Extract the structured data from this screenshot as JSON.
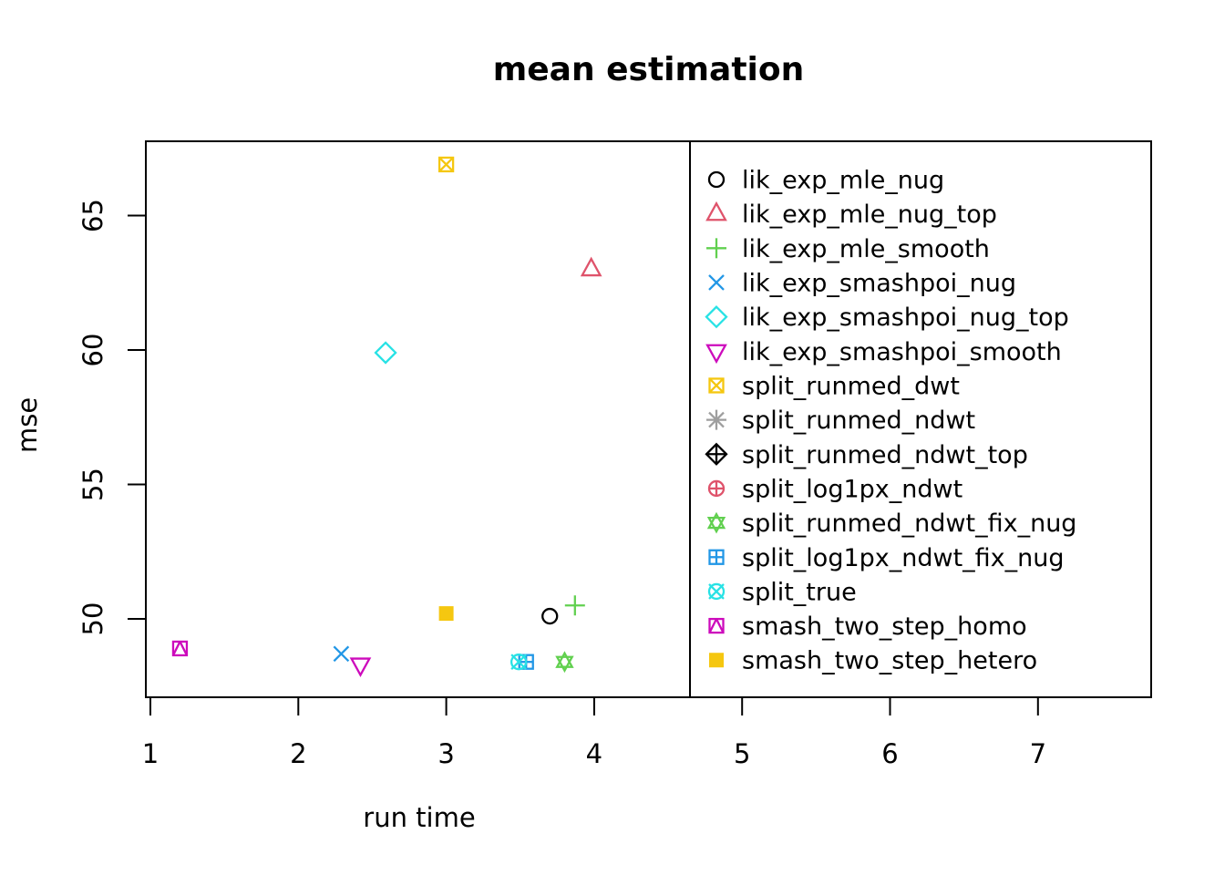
{
  "chart_data": {
    "type": "scatter",
    "title": "mean estimation",
    "xlabel": "run time",
    "ylabel": "mse",
    "x_ticks": [
      1,
      2,
      3,
      4,
      5,
      6,
      7
    ],
    "y_ticks": [
      50,
      55,
      60,
      65
    ],
    "xlim": [
      0.97,
      7.77
    ],
    "ylim": [
      47.1,
      67.8
    ],
    "grid": false,
    "legend_position": "right-panel",
    "series": [
      {
        "name": "lik_exp_mle_nug",
        "pch": 1,
        "color": "#000000",
        "points": [
          [
            3.7,
            50.1
          ]
        ]
      },
      {
        "name": "lik_exp_mle_nug_top",
        "pch": 2,
        "color": "#DF536B",
        "points": [
          [
            3.98,
            63.0
          ]
        ]
      },
      {
        "name": "lik_exp_mle_smooth",
        "pch": 3,
        "color": "#61D04F",
        "points": [
          [
            3.87,
            50.5
          ]
        ]
      },
      {
        "name": "lik_exp_smashpoi_nug",
        "pch": 4,
        "color": "#2297E6",
        "points": [
          [
            2.29,
            48.7
          ]
        ]
      },
      {
        "name": "lik_exp_smashpoi_nug_top",
        "pch": 5,
        "color": "#28E2E5",
        "points": [
          [
            2.59,
            59.9
          ]
        ]
      },
      {
        "name": "lik_exp_smashpoi_smooth",
        "pch": 6,
        "color": "#CD0BBC",
        "points": [
          [
            2.42,
            48.3
          ]
        ]
      },
      {
        "name": "split_runmed_dwt",
        "pch": 7,
        "color": "#F5C710",
        "points": [
          [
            3.0,
            66.9
          ]
        ]
      },
      {
        "name": "split_runmed_ndwt",
        "pch": 8,
        "color": "#9E9E9E",
        "points": []
      },
      {
        "name": "split_runmed_ndwt_top",
        "pch": 9,
        "color": "#000000",
        "points": []
      },
      {
        "name": "split_log1px_ndwt",
        "pch": 10,
        "color": "#DF536B",
        "points": []
      },
      {
        "name": "split_runmed_ndwt_fix_nug",
        "pch": 11,
        "color": "#61D04F",
        "points": [
          [
            3.8,
            48.4
          ]
        ]
      },
      {
        "name": "split_log1px_ndwt_fix_nug",
        "pch": 12,
        "color": "#2297E6",
        "points": [
          [
            3.54,
            48.4
          ]
        ]
      },
      {
        "name": "split_true",
        "pch": 13,
        "color": "#28E2E5",
        "points": [
          [
            3.49,
            48.4
          ]
        ]
      },
      {
        "name": "smash_two_step_homo",
        "pch": 14,
        "color": "#CD0BBC",
        "points": [
          [
            1.2,
            48.9
          ]
        ]
      },
      {
        "name": "smash_two_step_hetero",
        "pch": 15,
        "color": "#F5C710",
        "points": [
          [
            3.0,
            50.2
          ]
        ]
      }
    ]
  }
}
